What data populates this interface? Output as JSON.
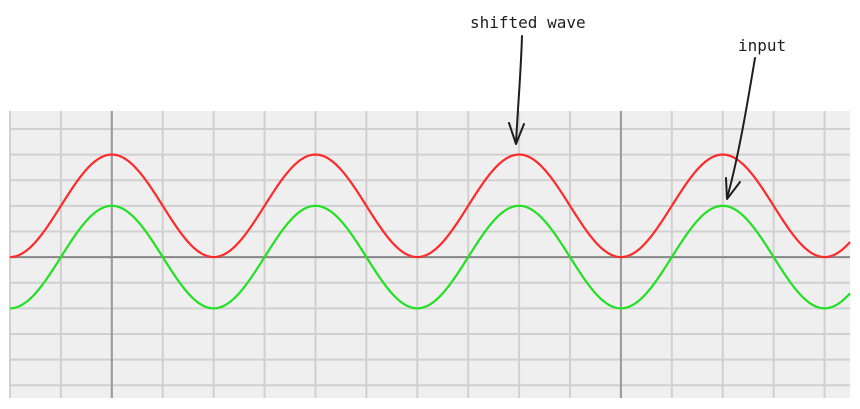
{
  "chart_data": {
    "type": "line",
    "title": "",
    "xlabel": "",
    "ylabel": "",
    "grid": true,
    "xlim": [
      0,
      16.5
    ],
    "ylim": [
      -2.75,
      2.85
    ],
    "series": [
      {
        "color": "#ff2a2a",
        "amplitude": 1,
        "offset": 1,
        "period": 4,
        "phase_deg": 0,
        "x": [
          0,
          1,
          2,
          3,
          4,
          5,
          6,
          7,
          8,
          9,
          10,
          11,
          12,
          13,
          14,
          15,
          16
        ],
        "y": [
          0,
          1,
          2,
          1,
          0,
          1,
          2,
          1,
          0,
          1,
          2,
          1,
          0,
          1,
          2,
          1,
          0
        ]
      },
      {
        "color": "#22e022",
        "amplitude": 1,
        "offset": 0,
        "period": 4,
        "phase_deg": 0,
        "x": [
          0,
          1,
          2,
          3,
          4,
          5,
          6,
          7,
          8,
          9,
          10,
          11,
          12,
          13,
          14,
          15,
          16
        ],
        "y": [
          -1,
          0,
          1,
          0,
          -1,
          0,
          1,
          0,
          -1,
          0,
          1,
          0,
          -1,
          0,
          1,
          0,
          -1
        ]
      }
    ],
    "annotations": [
      {
        "text": "shifted wave",
        "series": 0
      },
      {
        "text": "input",
        "series": 1
      }
    ]
  },
  "colors": {
    "plot_bg": "#efefef",
    "grid_minor": "#d0d0d0",
    "grid_major": "#9a9a9a",
    "axis": "#888888",
    "arrow": "#1e1e1e"
  }
}
